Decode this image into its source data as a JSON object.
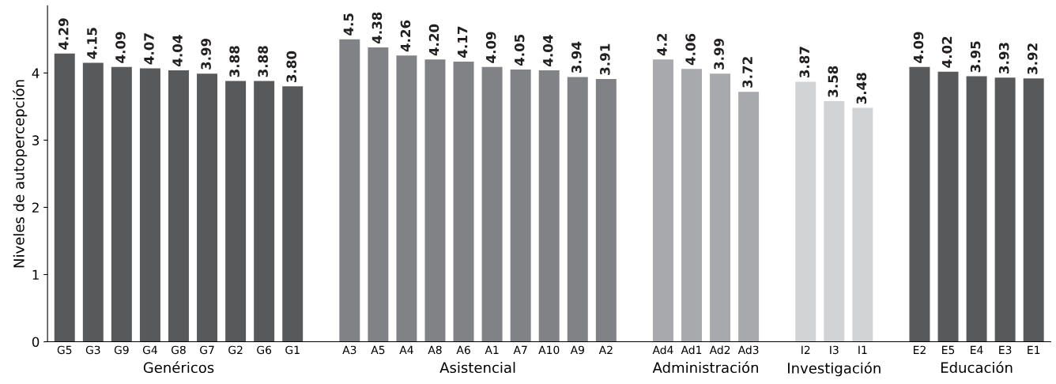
{
  "chart_data": {
    "type": "bar",
    "ylabel": "Niveles de autopercepción",
    "categories": [
      "G5",
      "G3",
      "G9",
      "G4",
      "G8",
      "G7",
      "G2",
      "G6",
      "G1",
      null,
      "A3",
      "A5",
      "A4",
      "A8",
      "A6",
      "A1",
      "A7",
      "A10",
      "A9",
      "A2",
      null,
      "Ad4",
      "Ad1",
      "Ad2",
      "Ad3",
      null,
      "I2",
      "I3",
      "I1",
      null,
      "E2",
      "E5",
      "E4",
      "E3",
      "E1"
    ],
    "values": [
      4.29,
      4.15,
      4.09,
      4.07,
      4.04,
      3.99,
      3.88,
      3.88,
      3.8,
      null,
      4.5,
      4.38,
      4.26,
      4.2,
      4.17,
      4.09,
      4.05,
      4.04,
      3.94,
      3.91,
      null,
      4.2,
      4.06,
      3.99,
      3.72,
      null,
      3.87,
      3.58,
      3.48,
      null,
      4.09,
      4.02,
      3.95,
      3.93,
      3.92
    ],
    "value_labels": [
      "4.29",
      "4.15",
      "4.09",
      "4.07",
      "4.04",
      "3.99",
      "3.88",
      "3.88",
      "3.80",
      null,
      "4.5",
      "4.38",
      "4.26",
      "4.20",
      "4.17",
      "4.09",
      "4.05",
      "4.04",
      "3.94",
      "3.91",
      null,
      "4.2",
      "4.06",
      "3.99",
      "3.72",
      null,
      "3.87",
      "3.58",
      "3.48",
      null,
      "4.09",
      "4.02",
      "3.95",
      "3.93",
      "3.92"
    ],
    "colors": [
      "#58595b",
      "#58595b",
      "#58595b",
      "#58595b",
      "#58595b",
      "#58595b",
      "#58595b",
      "#58595b",
      "#58595b",
      null,
      "#808285",
      "#808285",
      "#808285",
      "#808285",
      "#808285",
      "#808285",
      "#808285",
      "#808285",
      "#808285",
      "#808285",
      null,
      "#a7a9ac",
      "#a7a9ac",
      "#a7a9ac",
      "#a7a9ac",
      null,
      "#d1d3d4",
      "#d1d3d4",
      "#d1d3d4",
      null,
      "#58595b",
      "#58595b",
      "#58595b",
      "#58595b",
      "#58595b"
    ],
    "annotations": [
      "Genéricos",
      "Asistencial",
      "Administración",
      "Investigación",
      "Educación"
    ],
    "ylim": [
      0,
      5
    ],
    "yticks": [
      0,
      1,
      2,
      3,
      4
    ],
    "grid": false,
    "legend": false
  }
}
